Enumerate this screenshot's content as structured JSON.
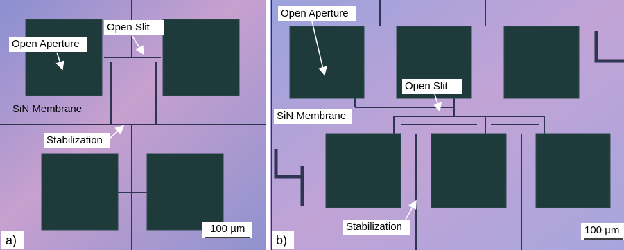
{
  "panels": [
    {
      "label": "a)",
      "annotations": [
        "Open Aperture",
        "Open Slit",
        "SiN Membrane",
        "Stabilization"
      ],
      "scale_bar": "100 µm"
    },
    {
      "label": "b)",
      "annotations": [
        "Open Aperture",
        "Open Slit",
        "SiN Membrane",
        "Stabilization"
      ],
      "scale_bar": "100 µm"
    }
  ]
}
